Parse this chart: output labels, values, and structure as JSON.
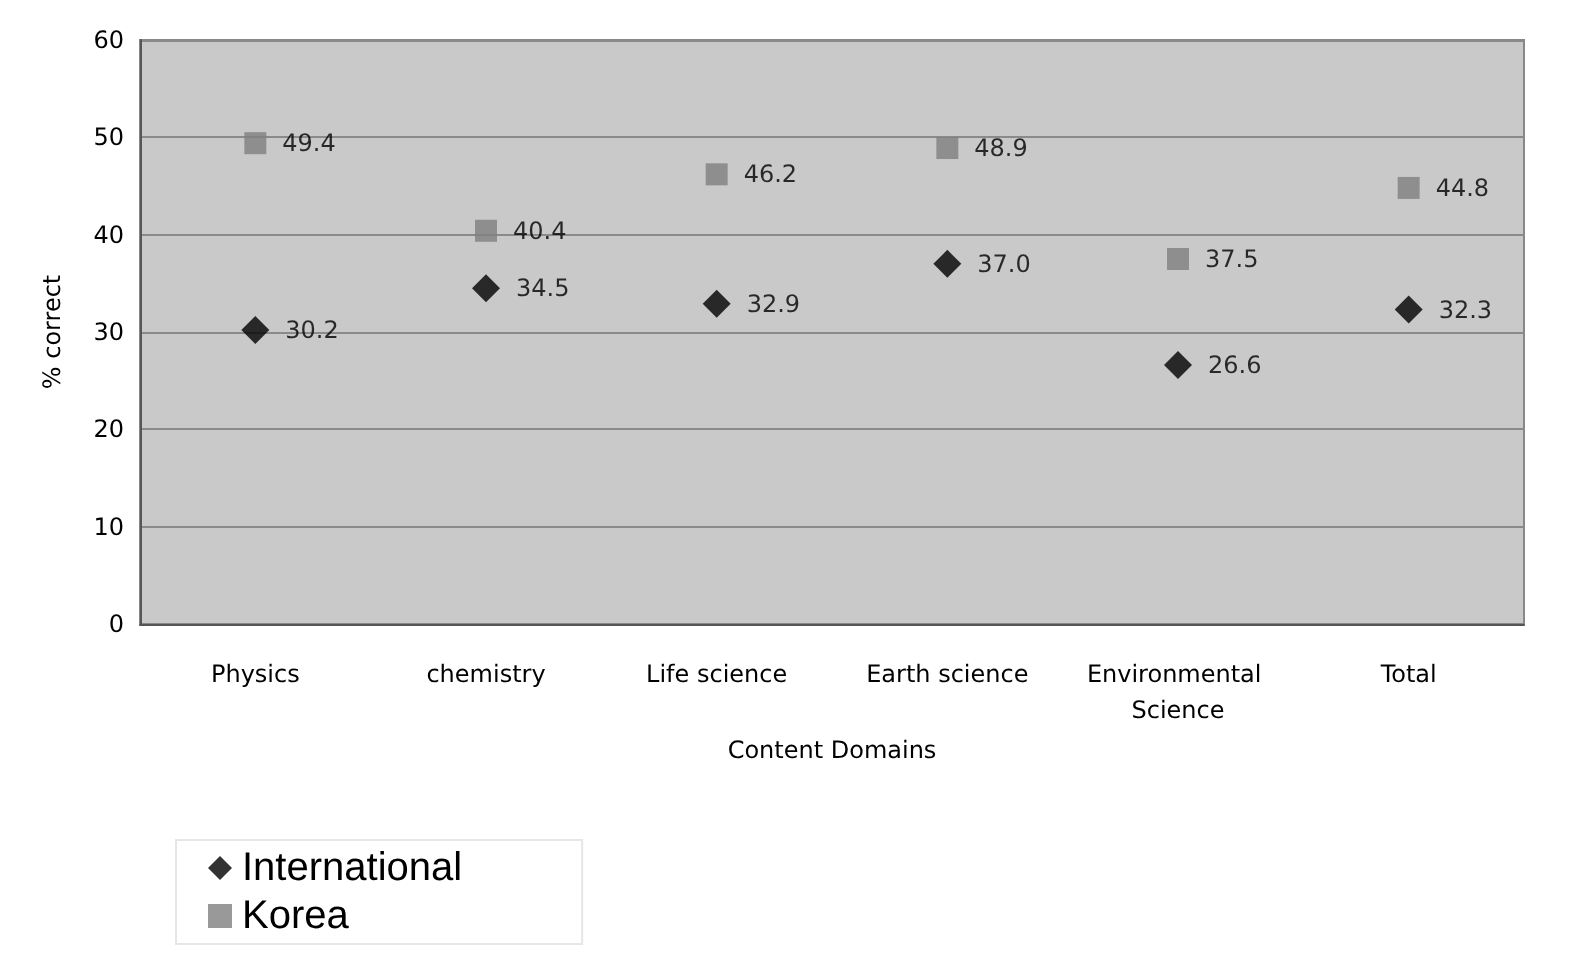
{
  "chart_data": {
    "type": "scatter",
    "xlabel": "Content Domains",
    "ylabel": "% correct",
    "categories": [
      "Physics",
      "chemistry",
      "Life science",
      "Earth science",
      "Environmental Science",
      "Total"
    ],
    "series": [
      {
        "name": "International",
        "color": "#000000",
        "marker": "diamond",
        "values": [
          30.2,
          34.5,
          32.9,
          37.0,
          26.6,
          32.3
        ],
        "value_labels": [
          "30.2",
          "34.5",
          "32.9",
          "37.0",
          "26.6",
          "32.3"
        ]
      },
      {
        "name": "Korea",
        "color": "#808080",
        "marker": "square",
        "values": [
          49.4,
          40.4,
          46.2,
          48.9,
          37.5,
          44.8
        ],
        "value_labels": [
          "49.4",
          "40.4",
          "46.2",
          "48.9",
          "37.5",
          "44.8"
        ]
      }
    ],
    "ylim": [
      0,
      60
    ],
    "yticks": [
      0,
      10,
      20,
      30,
      40,
      50,
      60
    ],
    "grid": "y",
    "legend": "bottom left"
  }
}
